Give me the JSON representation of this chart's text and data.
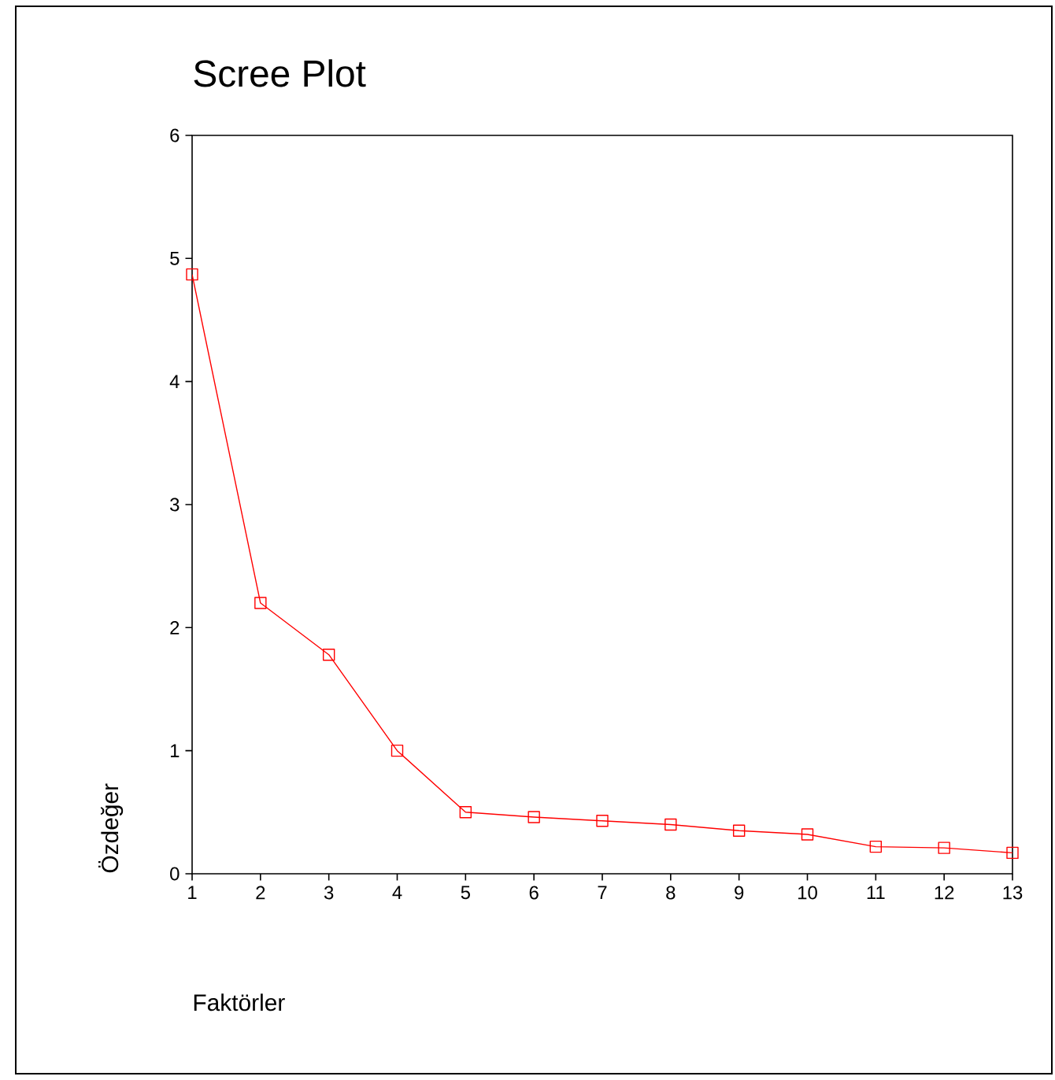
{
  "chart_data": {
    "type": "line",
    "title": "Scree Plot",
    "xlabel": "Faktörler",
    "ylabel": "Özdeğer",
    "x": [
      1,
      2,
      3,
      4,
      5,
      6,
      7,
      8,
      9,
      10,
      11,
      12,
      13
    ],
    "series": [
      {
        "color": "#ff0000",
        "values": [
          4.87,
          2.2,
          1.78,
          1.0,
          0.5,
          0.46,
          0.43,
          0.4,
          0.35,
          0.32,
          0.22,
          0.21,
          0.17
        ]
      }
    ],
    "xlim": [
      1,
      13
    ],
    "xticks": [
      1,
      2,
      3,
      4,
      5,
      6,
      7,
      8,
      9,
      10,
      11,
      12,
      13
    ],
    "ylim": [
      0,
      6
    ],
    "yticks": [
      0,
      1,
      2,
      3,
      4,
      5,
      6
    ],
    "marker": "square",
    "line_style": "solid"
  }
}
